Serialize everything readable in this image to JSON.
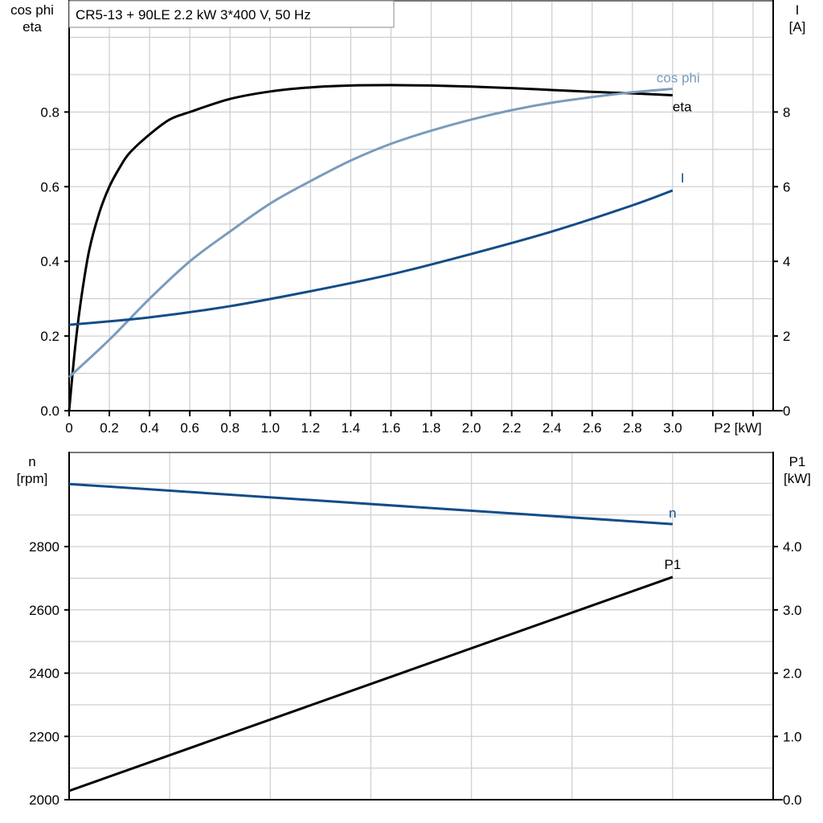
{
  "chart_data": [
    {
      "type": "line",
      "title": "CR5-13 + 90LE   2.2 kW   3*400 V, 50 Hz",
      "xlabel": "P2 [kW]",
      "ylabel": "cos phi\neta",
      "ylabel_lines": [
        "cos phi",
        "eta"
      ],
      "y2label_lines": [
        "I",
        "[A]"
      ],
      "xlim": [
        0,
        3.5
      ],
      "ylim": [
        0,
        1.1
      ],
      "y2lim": [
        0,
        11
      ],
      "grid": true,
      "xticks": [
        "0",
        "0.2",
        "0.4",
        "0.6",
        "0.8",
        "1.0",
        "1.2",
        "1.4",
        "1.6",
        "1.8",
        "2.0",
        "2.2",
        "2.4",
        "2.6",
        "2.8",
        "3.0"
      ],
      "yticks": [
        "0.0",
        "0.2",
        "0.4",
        "0.6",
        "0.8"
      ],
      "y2ticks": [
        "0",
        "2",
        "4",
        "6",
        "8"
      ],
      "series": [
        {
          "name": "eta",
          "axis": "left",
          "color": "#000000",
          "x": [
            0,
            0.03,
            0.06,
            0.1,
            0.15,
            0.2,
            0.25,
            0.3,
            0.4,
            0.5,
            0.6,
            0.8,
            1.0,
            1.2,
            1.4,
            1.6,
            1.8,
            2.0,
            2.2,
            2.4,
            2.6,
            2.8,
            3.0
          ],
          "y": [
            0,
            0.17,
            0.3,
            0.43,
            0.53,
            0.6,
            0.65,
            0.69,
            0.74,
            0.78,
            0.8,
            0.835,
            0.855,
            0.866,
            0.871,
            0.872,
            0.871,
            0.868,
            0.864,
            0.859,
            0.854,
            0.85,
            0.845
          ]
        },
        {
          "name": "cos phi",
          "axis": "left",
          "color": "#7a9cbc",
          "x": [
            0,
            0.2,
            0.4,
            0.6,
            0.8,
            1.0,
            1.2,
            1.4,
            1.6,
            1.8,
            2.0,
            2.2,
            2.4,
            2.6,
            2.8,
            3.0
          ],
          "y": [
            0.09,
            0.19,
            0.3,
            0.4,
            0.48,
            0.555,
            0.615,
            0.67,
            0.715,
            0.75,
            0.78,
            0.805,
            0.825,
            0.84,
            0.853,
            0.862
          ]
        },
        {
          "name": "I",
          "axis": "right",
          "color": "#124d87",
          "x": [
            0,
            0.4,
            0.8,
            1.2,
            1.6,
            2.0,
            2.4,
            2.8,
            3.0
          ],
          "y": [
            2.3,
            2.5,
            2.8,
            3.2,
            3.65,
            4.2,
            4.8,
            5.5,
            5.9
          ]
        }
      ]
    },
    {
      "type": "line",
      "xlim": [
        0,
        3.5
      ],
      "ylabel_lines": [
        "n",
        "[rpm]"
      ],
      "y2label_lines": [
        "P1",
        "[kW]"
      ],
      "ylim": [
        2000,
        3100
      ],
      "y2lim": [
        0,
        5.5
      ],
      "grid": true,
      "yticks": [
        "2000",
        "2200",
        "2400",
        "2600",
        "2800"
      ],
      "y2ticks": [
        "0.0",
        "1.0",
        "2.0",
        "3.0",
        "4.0"
      ],
      "series": [
        {
          "name": "n",
          "axis": "left",
          "color": "#124d87",
          "x": [
            0,
            3.0
          ],
          "y": [
            2998,
            2871
          ]
        },
        {
          "name": "P1",
          "axis": "right",
          "color": "#000000",
          "x": [
            0,
            3.0
          ],
          "y": [
            0.14,
            3.52
          ]
        }
      ]
    }
  ]
}
